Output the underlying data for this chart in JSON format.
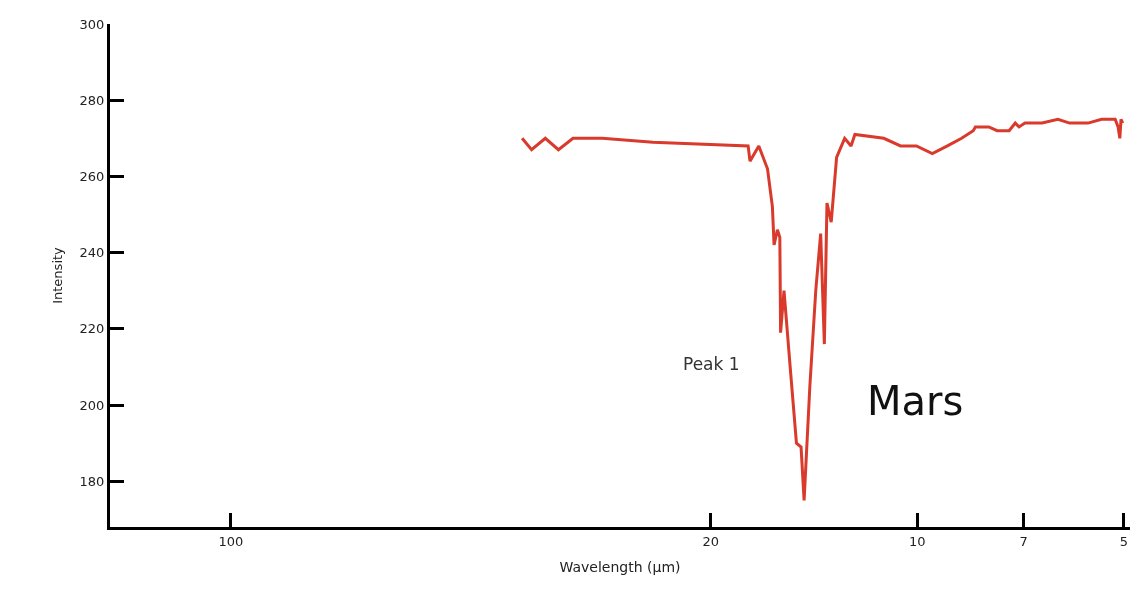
{
  "chart_data": {
    "type": "line",
    "xlabel": "Wavelength (µm)",
    "ylabel": "Intensity",
    "x": [
      37.65,
      36.47,
      34.83,
      33.33,
      31.74,
      28.78,
      24.28,
      17.64,
      17.53,
      17.02,
      16.53,
      16.26,
      16.17,
      15.99,
      15.86,
      15.82,
      15.64,
      15.32,
      15.0,
      14.77,
      14.62,
      14.34,
      14.06,
      13.83,
      13.66,
      13.54,
      13.35,
      13.11,
      12.76,
      12.49,
      12.33,
      11.19,
      10.58,
      10.03,
      9.51,
      9.04,
      8.62,
      8.29,
      8.23,
      7.87,
      7.65,
      7.35,
      7.2,
      7.11,
      6.97,
      6.58,
      6.24,
      6.0,
      5.64,
      5.39,
      5.15,
      5.1,
      5.07,
      5.05,
      5.02
    ],
    "series": [
      {
        "name": "Mars",
        "color": "#d93a2b",
        "values": [
          270,
          267,
          270,
          267,
          270,
          270,
          269,
          268,
          264,
          268,
          262,
          252,
          242,
          246,
          244,
          219,
          230,
          210,
          190,
          189,
          175,
          205,
          230,
          245,
          216,
          253,
          248,
          265,
          270,
          268,
          271,
          270,
          268,
          268,
          266,
          268,
          270,
          272,
          273,
          273,
          272,
          272,
          274,
          273,
          274,
          274,
          275,
          274,
          274,
          275,
          275,
          273,
          270,
          275,
          274
        ]
      }
    ],
    "annotations": [
      "Peak 1"
    ],
    "log": "x",
    "xlim": [
      150,
      4.9
    ],
    "xticks": [
      100,
      20,
      10,
      7,
      5
    ],
    "ylim": [
      168,
      300
    ],
    "yticks": [
      180,
      200,
      220,
      240,
      260,
      280,
      300
    ],
    "legend": false,
    "marker": "none",
    "line_style": "solid"
  }
}
